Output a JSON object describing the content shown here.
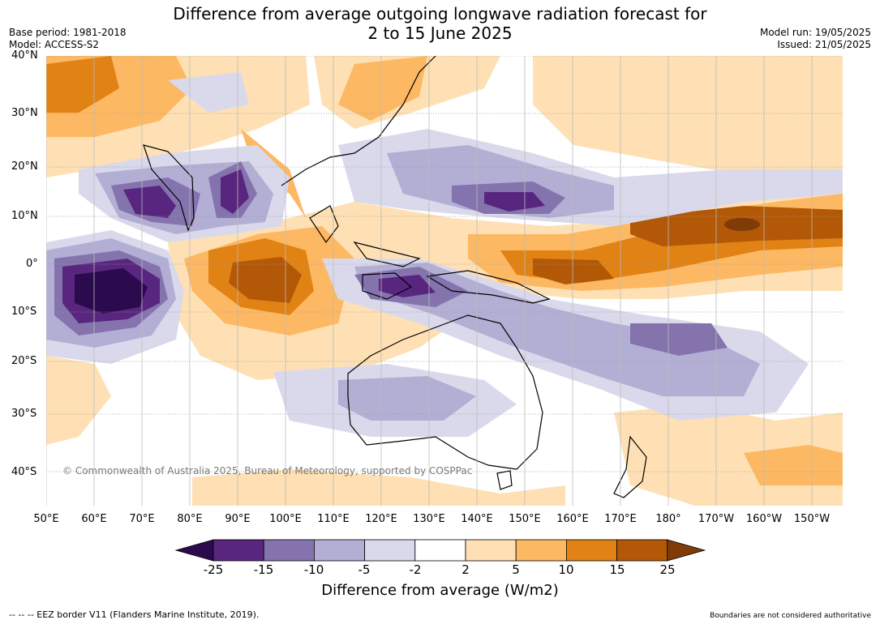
{
  "title": {
    "line1": "Difference from average outgoing longwave radiation forecast for",
    "line2": "2 to 15 June 2025"
  },
  "meta_left": {
    "base_period": "Base period: 1981-2018",
    "model": "Model: ACCESS-S2"
  },
  "meta_right": {
    "model_run": "Model run: 19/05/2025",
    "issued": "Issued: 21/05/2025"
  },
  "lat_labels": [
    "40°N",
    "30°N",
    "20°N",
    "10°N",
    "0°",
    "10°S",
    "20°S",
    "30°S",
    "40°S"
  ],
  "lon_labels": [
    "50°E",
    "60°E",
    "70°E",
    "80°E",
    "90°E",
    "100°E",
    "110°E",
    "120°E",
    "130°E",
    "140°E",
    "150°E",
    "160°E",
    "170°E",
    "180°",
    "170°W",
    "160°W",
    "150°W"
  ],
  "copyright": "© Commonwealth of Australia 2025, Bureau of Meteorology, supported by COSPPac",
  "colorbar": {
    "ticks": [
      "-25",
      "-15",
      "-10",
      "-5",
      "-2",
      "2",
      "5",
      "10",
      "15",
      "25"
    ],
    "colors": [
      "#2b0a4e",
      "#59267f",
      "#8473ad",
      "#b2aed4",
      "#dad9ec",
      "#ffffff",
      "#fee0b4",
      "#fdb863",
      "#e08214",
      "#b35806",
      "#7f3b08"
    ],
    "title": "Difference from average (W/m2)"
  },
  "footer_left": "--  --  -- EEZ border V11 (Flanders Marine Institute, 2019).",
  "footer_right": "Boundaries are not considered authoritative"
}
